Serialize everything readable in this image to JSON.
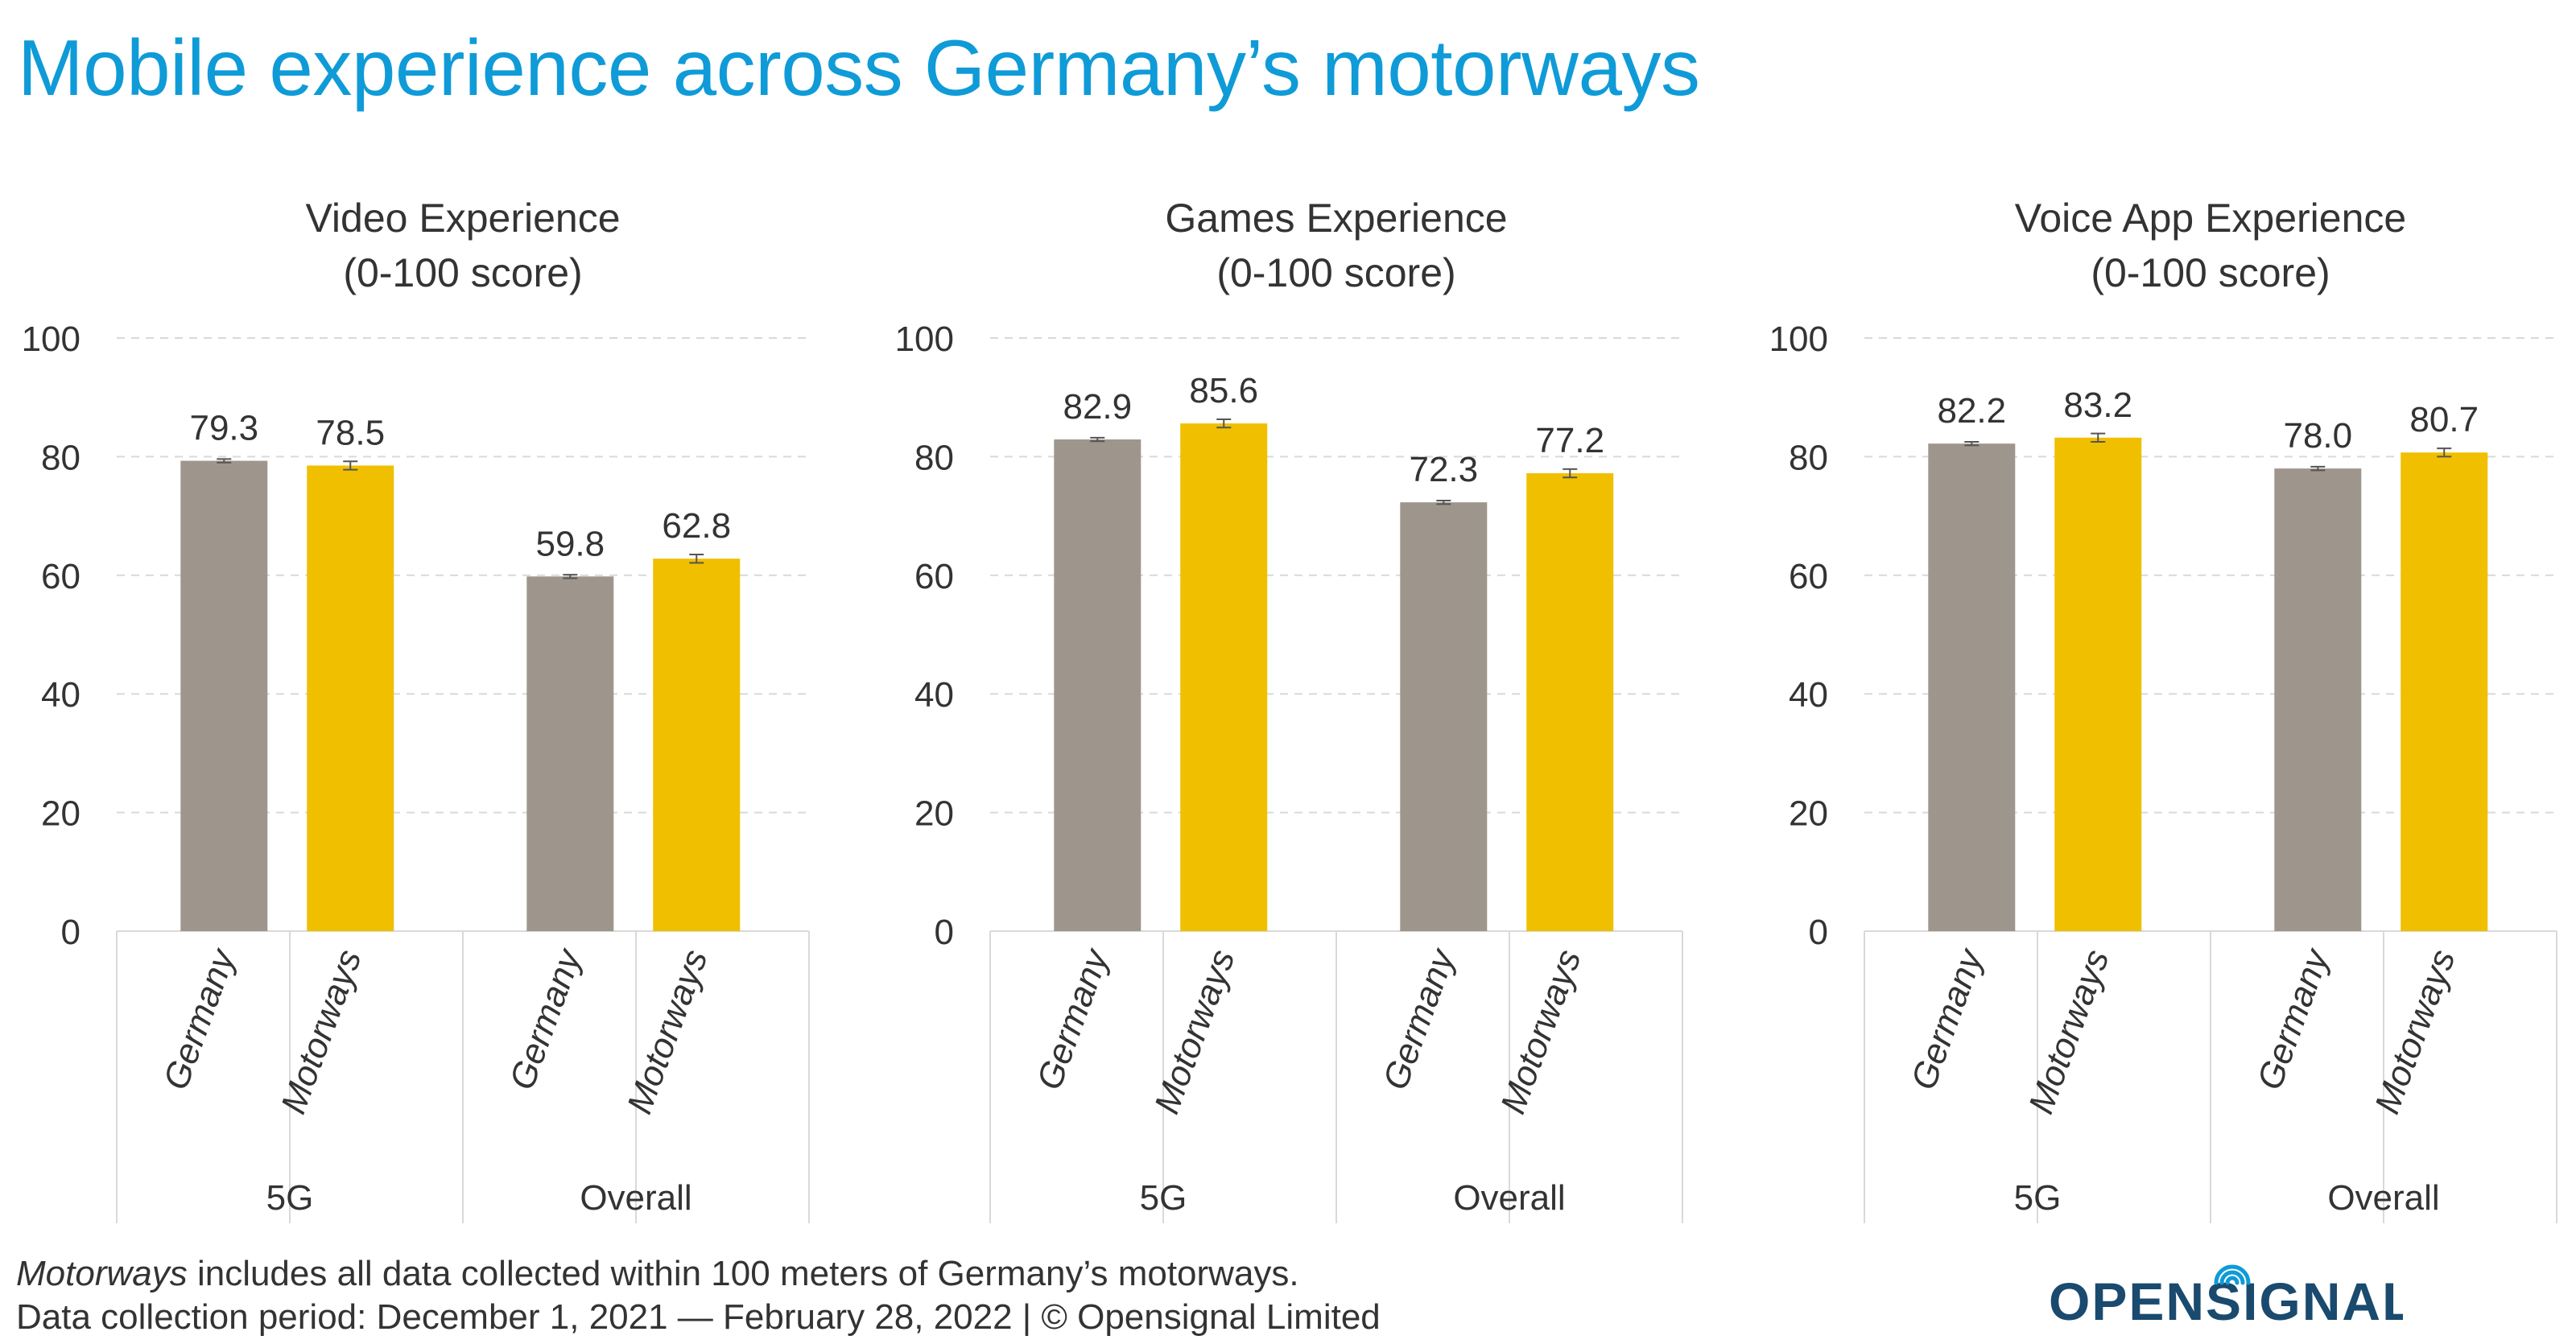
{
  "title": "Mobile experience across Germany’s motorways",
  "footnote": {
    "line1_italic": "Motorways",
    "line1_rest": " includes all data collected within 100 meters of Germany’s motorways.",
    "line2": "Data collection period: December 1, 2021 — February 28, 2022 | © Opensignal Limited"
  },
  "logo": {
    "text_before": "OPENS",
    "text_i": "I",
    "text_after": "GNAL",
    "color": "#1a4a6e",
    "accent": "#0f9bd7"
  },
  "colors": {
    "germany": "#9e968c",
    "motorways": "#f0bf00",
    "grid": "#d9d9d9",
    "axis_text": "#333333"
  },
  "chart_data": [
    {
      "type": "bar",
      "title": [
        "Video Experience",
        "(0-100 score)"
      ],
      "ylim": [
        0,
        100
      ],
      "yticks": [
        0,
        20,
        40,
        60,
        80,
        100
      ],
      "groups": [
        "5G",
        "Overall"
      ],
      "categories": [
        "Germany",
        "Motorways"
      ],
      "series": [
        {
          "category": "Germany",
          "values": [
            79.3,
            59.8
          ],
          "labels": [
            "79.3",
            "59.8"
          ]
        },
        {
          "category": "Motorways",
          "values": [
            78.5,
            62.8
          ],
          "labels": [
            "78.5",
            "62.8"
          ]
        }
      ],
      "grid": true
    },
    {
      "type": "bar",
      "title": [
        "Games Experience",
        "(0-100 score)"
      ],
      "ylim": [
        0,
        100
      ],
      "yticks": [
        0,
        20,
        40,
        60,
        80,
        100
      ],
      "groups": [
        "5G",
        "Overall"
      ],
      "categories": [
        "Germany",
        "Motorways"
      ],
      "series": [
        {
          "category": "Germany",
          "values": [
            82.9,
            72.3
          ],
          "labels": [
            "82.9",
            "72.3"
          ]
        },
        {
          "category": "Motorways",
          "values": [
            85.6,
            77.2
          ],
          "labels": [
            "85.6",
            "77.2"
          ]
        }
      ],
      "grid": true
    },
    {
      "type": "bar",
      "title": [
        "Voice App Experience",
        "(0-100 score)"
      ],
      "ylim": [
        0,
        100
      ],
      "yticks": [
        0,
        20,
        40,
        60,
        80,
        100
      ],
      "groups": [
        "5G",
        "Overall"
      ],
      "categories": [
        "Germany",
        "Motorways"
      ],
      "series": [
        {
          "category": "Germany",
          "values": [
            82.2,
            78.0
          ],
          "labels": [
            "82.2",
            "78.0"
          ]
        },
        {
          "category": "Motorways",
          "values": [
            83.2,
            80.7
          ],
          "labels": [
            "83.2",
            "80.7"
          ]
        }
      ],
      "grid": true
    }
  ]
}
